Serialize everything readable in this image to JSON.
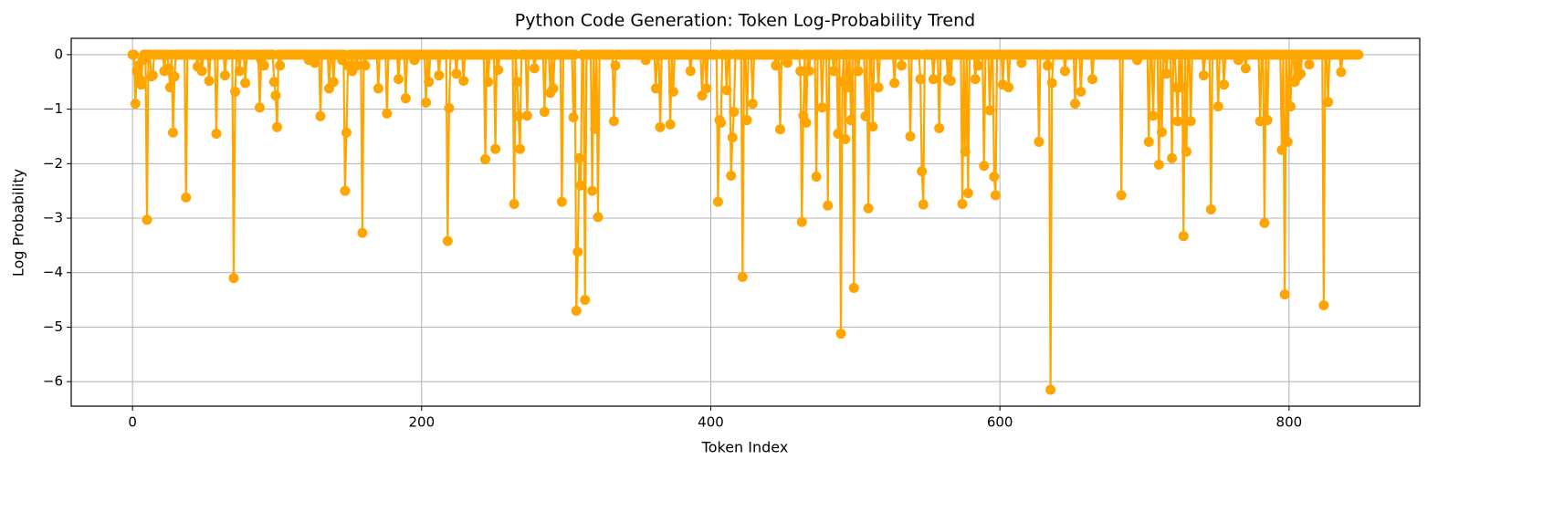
{
  "chart_data": {
    "type": "line",
    "title": "Python Code Generation: Token Log-Probability Trend",
    "xlabel": "Token Index",
    "ylabel": "Log Probability",
    "color": "#ffa500",
    "grid": true,
    "marker": "o",
    "xlim": [
      -42.4,
      890.4
    ],
    "ylim": [
      -6.45,
      0.3
    ],
    "xticks": [
      0,
      200,
      400,
      600,
      800
    ],
    "yticks": [
      {
        "value": -6,
        "label": "−6"
      },
      {
        "value": -5,
        "label": "−5"
      },
      {
        "value": -4,
        "label": "−4"
      },
      {
        "value": -3,
        "label": "−3"
      },
      {
        "value": -2,
        "label": "−2"
      },
      {
        "value": -1,
        "label": "−1"
      },
      0
    ],
    "x": [
      0,
      1,
      2,
      3,
      4,
      5,
      6,
      7,
      8,
      9,
      10,
      11,
      12,
      13,
      14,
      15,
      16,
      17,
      18,
      19,
      20,
      21,
      22,
      23,
      24,
      25,
      26,
      27,
      28,
      29,
      30,
      31,
      32,
      33,
      34,
      35,
      36,
      37,
      38,
      39,
      40,
      41,
      42,
      43,
      44,
      45,
      46,
      47,
      48,
      49,
      50,
      51,
      52,
      53,
      54,
      55,
      56,
      57,
      58,
      59,
      60,
      61,
      62,
      63,
      64,
      65,
      66,
      67,
      68,
      69,
      70,
      71,
      72,
      73,
      74,
      75,
      76,
      77,
      78,
      79,
      80,
      81,
      82,
      83,
      84,
      85,
      86,
      87,
      88,
      89,
      90,
      91,
      92,
      93,
      94,
      95,
      96,
      97,
      98,
      99,
      100,
      101,
      102,
      103,
      104,
      105,
      106,
      107,
      108,
      109,
      110,
      111,
      112,
      113,
      114,
      115,
      116,
      117,
      118,
      119,
      120,
      121,
      122,
      123,
      124,
      125,
      126,
      127,
      128,
      129,
      130,
      131,
      132,
      133,
      134,
      135,
      136,
      137,
      138,
      139,
      140,
      141,
      142,
      143,
      144,
      145,
      146,
      147,
      148,
      149,
      150,
      151,
      152,
      153,
      154,
      155,
      156,
      157,
      158,
      159,
      160,
      161,
      162,
      163,
      164,
      165,
      166,
      167,
      168,
      169,
      170,
      171,
      172,
      173,
      174,
      175,
      176,
      177,
      178,
      179,
      180,
      181,
      182,
      183,
      184,
      185,
      186,
      187,
      188,
      189,
      190,
      191,
      192,
      193,
      194,
      195,
      196,
      197,
      198,
      199,
      200,
      201,
      202,
      203,
      204,
      205,
      206,
      207,
      208,
      209,
      210,
      211,
      212,
      213,
      214,
      215,
      216,
      217,
      218,
      219,
      220,
      221,
      222,
      223,
      224,
      225,
      226,
      227,
      228,
      229,
      230,
      231,
      232,
      233,
      234,
      235,
      236,
      237,
      238,
      239,
      240,
      241,
      242,
      243,
      244,
      245,
      246,
      247,
      248,
      249,
      250,
      251,
      252,
      253,
      254,
      255,
      256,
      257,
      258,
      259,
      260,
      261,
      262,
      263,
      264,
      265,
      266,
      267,
      268,
      269,
      270,
      271,
      272,
      273,
      274,
      275,
      276,
      277,
      278,
      279,
      280,
      281,
      282,
      283,
      284,
      285,
      286,
      287,
      288,
      289,
      290,
      291,
      292,
      293,
      294,
      295,
      296,
      297,
      298,
      299,
      300,
      301,
      302,
      303,
      304,
      305,
      306,
      307,
      308,
      309,
      310,
      311,
      312,
      313,
      314,
      315,
      316,
      317,
      318,
      319,
      320,
      321,
      322,
      323,
      324,
      325,
      326,
      327,
      328,
      329,
      330,
      331,
      332,
      333,
      334,
      335,
      336,
      337,
      338,
      339,
      340,
      341,
      342,
      343,
      344,
      345,
      346,
      347,
      348,
      349,
      350,
      351,
      352,
      353,
      354,
      355,
      356,
      357,
      358,
      359,
      360,
      361,
      362,
      363,
      364,
      365,
      366,
      367,
      368,
      369,
      370,
      371,
      372,
      373,
      374,
      375,
      376,
      377,
      378,
      379,
      380,
      381,
      382,
      383,
      384,
      385,
      386,
      387,
      388,
      389,
      390,
      391,
      392,
      393,
      394,
      395,
      396,
      397,
      398,
      399,
      400,
      401,
      402,
      403,
      404,
      405,
      406,
      407,
      408,
      409,
      410,
      411,
      412,
      413,
      414,
      415,
      416,
      417,
      418,
      419,
      420,
      421,
      422,
      423,
      424,
      425,
      426,
      427,
      428,
      429,
      430,
      431,
      432,
      433,
      434,
      435,
      436,
      437,
      438,
      439,
      440,
      441,
      442,
      443,
      444,
      445,
      446,
      447,
      448,
      449,
      450,
      451,
      452,
      453,
      454,
      455,
      456,
      457,
      458,
      459,
      460,
      461,
      462,
      463,
      464,
      465,
      466,
      467,
      468,
      469,
      470,
      471,
      472,
      473,
      474,
      475,
      476,
      477,
      478,
      479,
      480,
      481,
      482,
      483,
      484,
      485,
      486,
      487,
      488,
      489,
      490,
      491,
      492,
      493,
      494,
      495,
      496,
      497,
      498,
      499,
      500,
      501,
      502,
      503,
      504,
      505,
      506,
      507,
      508,
      509,
      510,
      511,
      512,
      513,
      514,
      515,
      516,
      517,
      518,
      519,
      520,
      521,
      522,
      523,
      524,
      525,
      526,
      527,
      528,
      529,
      530,
      531,
      532,
      533,
      534,
      535,
      536,
      537,
      538,
      539,
      540,
      541,
      542,
      543,
      544,
      545,
      546,
      547,
      548,
      549,
      550,
      551,
      552,
      553,
      554,
      555,
      556,
      557,
      558,
      559,
      560,
      561,
      562,
      563,
      564,
      565,
      566,
      567,
      568,
      569,
      570,
      571,
      572,
      573,
      574,
      575,
      576,
      577,
      578,
      579,
      580,
      581,
      582,
      583,
      584,
      585,
      586,
      587,
      588,
      589,
      590,
      591,
      592,
      593,
      594,
      595,
      596,
      597,
      598,
      599,
      600,
      601,
      602,
      603,
      604,
      605,
      606,
      607,
      608,
      609,
      610,
      611,
      612,
      613,
      614,
      615,
      616,
      617,
      618,
      619,
      620,
      621,
      622,
      623,
      624,
      625,
      626,
      627,
      628,
      629,
      630,
      631,
      632,
      633,
      634,
      635,
      636,
      637,
      638,
      639,
      640,
      641,
      642,
      643,
      644,
      645,
      646,
      647,
      648,
      649,
      650,
      651,
      652,
      653,
      654,
      655,
      656,
      657,
      658,
      659,
      660,
      661,
      662,
      663,
      664,
      665,
      666,
      667,
      668,
      669,
      670,
      671,
      672,
      673,
      674,
      675,
      676,
      677,
      678,
      679,
      680,
      681,
      682,
      683,
      684,
      685,
      686,
      687,
      688,
      689,
      690,
      691,
      692,
      693,
      694,
      695,
      696,
      697,
      698,
      699,
      700,
      701,
      702,
      703,
      704,
      705,
      706,
      707,
      708,
      709,
      710,
      711,
      712,
      713,
      714,
      715,
      716,
      717,
      718,
      719,
      720,
      721,
      722,
      723,
      724,
      725,
      726,
      727,
      728,
      729,
      730,
      731,
      732,
      733,
      734,
      735,
      736,
      737,
      738,
      739,
      740,
      741,
      742,
      743,
      744,
      745,
      746,
      747,
      748,
      749,
      750,
      751,
      752,
      753,
      754,
      755,
      756,
      757,
      758,
      759,
      760,
      761,
      762,
      763,
      764,
      765,
      766,
      767,
      768,
      769,
      770,
      771,
      772,
      773,
      774,
      775,
      776,
      777,
      778,
      779,
      780,
      781,
      782,
      783,
      784,
      785,
      786,
      787,
      788,
      789,
      790,
      791,
      792,
      793,
      794,
      795,
      796,
      797,
      798,
      799,
      800,
      801,
      802,
      803,
      804,
      805,
      806,
      807,
      808,
      809,
      810,
      811,
      812,
      813,
      814,
      815,
      816,
      817,
      818,
      819,
      820,
      821,
      822,
      823,
      824,
      825,
      826,
      827,
      828,
      829,
      830,
      831,
      832,
      833,
      834,
      835,
      836,
      837,
      838,
      839,
      840,
      841,
      842,
      843,
      844,
      845,
      846,
      847,
      848
    ],
    "values": [
      0,
      0,
      -0.9,
      -0.3,
      -0.2,
      -0.45,
      -0.55,
      -0.1,
      0,
      0,
      -3.03,
      0,
      0,
      -0.4,
      -0.38,
      0,
      0,
      0,
      0,
      0,
      0,
      0,
      -0.3,
      0,
      0,
      -0.25,
      -0.6,
      0,
      -1.43,
      -0.4,
      0,
      0,
      0,
      0,
      0,
      0,
      0,
      -2.62,
      0,
      0,
      0,
      0,
      0,
      0,
      0,
      -0.22,
      0,
      0,
      -0.3,
      0,
      0,
      0,
      0,
      -0.48,
      0,
      0,
      0,
      0,
      -1.45,
      0,
      0,
      0,
      0,
      0,
      -0.38,
      0,
      0,
      0,
      0,
      0,
      -4.1,
      -0.68,
      0,
      0,
      -0.3,
      0,
      0,
      0,
      -0.52,
      0,
      0,
      0,
      0,
      0,
      0,
      0,
      0,
      0,
      -0.97,
      -0.1,
      0,
      -0.2,
      0,
      0,
      0,
      0,
      0,
      0,
      -0.5,
      -0.75,
      -1.33,
      0,
      -0.2,
      0,
      0,
      0,
      0,
      0,
      0,
      0,
      0,
      0,
      0,
      0,
      0,
      0,
      0,
      0,
      0,
      0,
      0,
      0,
      -0.1,
      0,
      0,
      0,
      -0.15,
      0,
      0,
      0,
      -1.13,
      0,
      0,
      0,
      0,
      0,
      -0.62,
      0,
      0,
      -0.5,
      0,
      0,
      0,
      0,
      0,
      -0.1,
      0,
      -2.5,
      -1.43,
      -0.2,
      0,
      0,
      -0.3,
      0,
      0,
      -0.2,
      0,
      0,
      0,
      -3.27,
      0,
      -0.2,
      0,
      0,
      0,
      0,
      0,
      0,
      0,
      0,
      -0.62,
      0,
      0,
      0,
      0,
      0,
      -1.08,
      0,
      0,
      0,
      0,
      0,
      0,
      0,
      -0.45,
      0,
      0,
      0,
      0,
      -0.8,
      0,
      0,
      0,
      0,
      0,
      -0.1,
      0,
      0,
      0,
      0,
      0,
      0,
      0,
      -0.88,
      0,
      -0.5,
      0,
      0,
      0,
      0,
      0,
      0,
      -0.38,
      0,
      0,
      0,
      0,
      0,
      -3.42,
      -0.98,
      0,
      0,
      0,
      0,
      -0.35,
      0,
      0,
      0,
      0,
      -0.48,
      0,
      0,
      0,
      0,
      0,
      0,
      0,
      0,
      0,
      0,
      0,
      0,
      0,
      0,
      -1.92,
      0,
      -0.5,
      0,
      0,
      0,
      0,
      -1.73,
      0,
      -0.28,
      0,
      0,
      0,
      0,
      0,
      0,
      0,
      0,
      0,
      0,
      -2.74,
      0,
      -0.5,
      -1.13,
      -1.73,
      0,
      0,
      0,
      0,
      -1.12,
      0,
      0,
      0,
      0,
      -0.25,
      0,
      0,
      0,
      0,
      0,
      0,
      -1.05,
      0,
      0,
      0,
      -0.7,
      0,
      -0.62,
      0,
      0,
      0,
      0,
      0,
      -2.7,
      0,
      0,
      0,
      0,
      0,
      0,
      0,
      -1.15,
      0,
      -4.7,
      -3.62,
      -1.9,
      -2.4,
      0,
      0,
      -4.5,
      0,
      0,
      0,
      0,
      -2.5,
      0,
      -1.36,
      0,
      -2.98,
      0,
      0,
      0,
      0,
      0,
      0,
      0,
      0,
      0,
      0,
      -1.22,
      -0.2,
      0,
      0,
      0,
      0,
      0,
      0,
      0,
      0,
      0,
      0,
      0,
      0,
      0,
      0,
      0,
      0,
      0,
      0,
      0,
      0,
      -0.1,
      0,
      0,
      0,
      0,
      0,
      0,
      -0.62,
      0,
      0,
      -1.33,
      0,
      0,
      0,
      0,
      0,
      0,
      -1.28,
      0,
      -0.68,
      0,
      0,
      0,
      0,
      0,
      0,
      0,
      0,
      0,
      0,
      0,
      -0.3,
      0,
      0,
      0,
      0,
      0,
      0,
      0,
      -0.75,
      0,
      0,
      -0.62,
      0,
      0,
      0,
      0,
      0,
      0,
      0,
      -2.7,
      -1.2,
      -1.25,
      0,
      0,
      0,
      -0.65,
      0,
      0,
      -2.22,
      -1.52,
      -1.05,
      0,
      0,
      0,
      0,
      0,
      -4.08,
      0,
      0,
      -1.2,
      0,
      0,
      0,
      -0.9,
      0,
      0,
      0,
      0,
      0,
      0,
      0,
      0,
      0,
      0,
      0,
      0,
      0,
      0,
      0,
      -0.2,
      0,
      0,
      -1.37,
      0,
      0,
      0,
      0,
      -0.15,
      0,
      0,
      0,
      0,
      0,
      0,
      0,
      0,
      -0.3,
      -3.07,
      -1.12,
      0,
      -1.25,
      0,
      -0.3,
      0,
      0,
      0,
      0,
      -2.24,
      0,
      0,
      0,
      -0.97,
      0,
      0,
      0,
      -2.77,
      0,
      0,
      0,
      -0.3,
      0,
      0,
      -1.45,
      0,
      -5.12,
      -0.5,
      0,
      -1.55,
      0,
      -0.6,
      0,
      -1.2,
      0,
      -4.28,
      0,
      0,
      -0.3,
      0,
      0,
      0,
      0,
      -1.13,
      0,
      -2.82,
      0,
      0,
      -1.32,
      0,
      0,
      0,
      -0.6,
      0,
      0,
      0,
      0,
      0,
      0,
      0,
      0,
      0,
      0,
      -0.52,
      0,
      0,
      0,
      0,
      -0.2,
      0,
      0,
      0,
      0,
      0,
      -1.5,
      0,
      0,
      0,
      0,
      0,
      0,
      -0.45,
      -2.14,
      -2.75,
      0,
      0,
      0,
      0,
      0,
      0,
      -0.45,
      0,
      0,
      0,
      -1.35,
      0,
      0,
      0,
      0,
      0,
      -0.45,
      0,
      -0.48,
      0,
      0,
      0,
      0,
      0,
      0,
      0,
      -2.74,
      0,
      -1.78,
      0,
      -2.54,
      0,
      0,
      0,
      0,
      -0.45,
      0,
      -0.2,
      0,
      0,
      0,
      -2.04,
      0,
      0,
      0,
      -1.02,
      0,
      0,
      -2.24,
      -2.58,
      0,
      0,
      0,
      0,
      -0.55,
      0,
      0,
      0,
      -0.6,
      0,
      0,
      0,
      0,
      0,
      0,
      0,
      0,
      -0.15,
      0,
      0,
      0,
      0,
      0,
      0,
      0,
      0,
      0,
      0,
      0,
      -1.6,
      0,
      0,
      0,
      0,
      0,
      -0.2,
      0,
      -6.15,
      -0.52,
      0,
      0,
      0,
      0,
      0,
      0,
      0,
      0,
      -0.3,
      0,
      0,
      0,
      0,
      0,
      0,
      -0.9,
      0,
      0,
      0,
      -0.68,
      0,
      0,
      0,
      0,
      0,
      0,
      0,
      -0.45,
      0,
      0,
      0,
      0,
      0,
      0,
      0,
      0,
      0,
      0,
      0,
      0,
      0,
      0,
      0,
      0,
      0,
      0,
      0,
      -2.58,
      0,
      0,
      0,
      0,
      0,
      0,
      0,
      0,
      0,
      0,
      -0.1,
      0,
      0,
      0,
      0,
      0,
      0,
      0,
      -1.6,
      0,
      0,
      -1.12,
      0,
      0,
      0,
      -2.02,
      0,
      -1.42,
      0,
      0,
      -0.35,
      0,
      0,
      0,
      -1.9,
      0,
      0,
      -0.6,
      -1.22,
      0,
      -0.6,
      0,
      -3.33,
      0,
      -1.78,
      0,
      0,
      -1.22,
      0,
      0,
      0,
      0,
      0,
      0,
      0,
      0,
      -0.38,
      0,
      0,
      0,
      0,
      -2.84,
      0,
      0,
      0,
      0,
      -0.95,
      0,
      0,
      0,
      -0.55,
      0,
      0,
      0,
      0,
      0,
      0,
      0,
      0,
      0,
      -0.1,
      0,
      0,
      0,
      0,
      -0.25,
      0,
      0,
      0,
      0,
      0,
      0,
      0,
      0,
      0,
      -1.22,
      0,
      0,
      -3.09,
      0,
      -1.2,
      0,
      0,
      0,
      0,
      0,
      0,
      0,
      0,
      0,
      -1.75,
      0,
      -4.4,
      0,
      -1.6,
      0,
      -0.95,
      0,
      0,
      -0.5,
      0,
      -0.4,
      0,
      -0.35,
      0,
      0,
      0,
      0,
      0,
      -0.18,
      0,
      0,
      0,
      0,
      0,
      0,
      0,
      0,
      0,
      -4.6,
      0,
      0,
      -0.87,
      0,
      0,
      0,
      0,
      0,
      0,
      0,
      0,
      -0.32,
      0,
      0,
      0,
      0,
      0,
      0,
      0,
      0,
      0,
      0,
      0,
      0
    ]
  }
}
